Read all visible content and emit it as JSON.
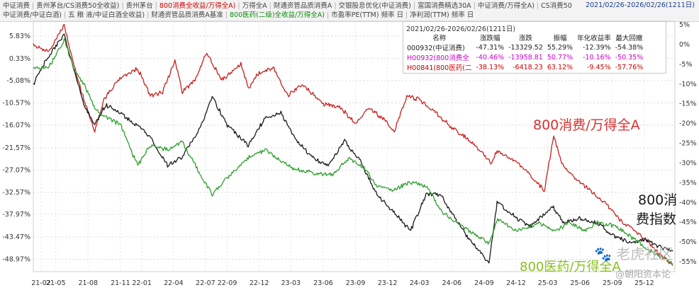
{
  "tabs": {
    "row1": [
      {
        "label": "中证消费",
        "color": "default"
      },
      {
        "label": "贵州茅台/CS消费50全收益)",
        "color": "default"
      },
      {
        "label": "贵州茅台",
        "color": "default"
      },
      {
        "label": "800消费全收益/万得全A)",
        "color": "red"
      },
      {
        "label": "万得全A",
        "color": "default"
      },
      {
        "label": "财通资管品质消费A",
        "color": "default"
      },
      {
        "label": "交银股息优化(中证消费)",
        "color": "default"
      },
      {
        "label": "富国消费精选30A",
        "color": "default"
      },
      {
        "label": "中证消费/万得全A)",
        "color": "default"
      },
      {
        "label": "CS消费50",
        "color": "default"
      }
    ],
    "row2": [
      {
        "label": "中证消费/中证白酒)",
        "color": "default"
      },
      {
        "label": "五 粮 液/中证白酒全收益)",
        "color": "default"
      },
      {
        "label": "财通资管品质消费A基准",
        "color": "default"
      },
      {
        "label": "800医药(二级)全收益/万得全A)",
        "color": "green"
      },
      {
        "label": "市盈率PE(TTM) 频率 日",
        "color": "default"
      },
      {
        "label": "净利润(TTM) 频率 日",
        "color": "default"
      }
    ]
  },
  "date_range": "2021/02/26-2026/02/26(1211日)",
  "stats_table": {
    "title": "2021/02/26-2026/02/26(1211日)",
    "columns": [
      "名称",
      "涨跌幅",
      "涨跌",
      "振幅",
      "年化收益率",
      "最大回撤"
    ],
    "rows": [
      {
        "name": "000932(中证消费)",
        "change_pct": "-47.31%",
        "change": "-13329.52",
        "amplitude": "55.29%",
        "annualized": "-12.39%",
        "max_drawdown": "-54.38%",
        "color": "#222222"
      },
      {
        "name": "H00932(800消费全",
        "change_pct": "-40.46%",
        "change": "-13958.81",
        "amplitude": "50.77%",
        "annualized": "-10.16%",
        "max_drawdown": "-50.35%",
        "color": "#cc00cc"
      },
      {
        "name": "H00841(800医药(二",
        "change_pct": "-38.13%",
        "change": "-6418.23",
        "amplitude": "63.12%",
        "annualized": "-9.45%",
        "max_drawdown": "-57.76%",
        "color": "#cc0000"
      }
    ]
  },
  "annotations": {
    "red_label": "800消费/万得全A",
    "black_label_1": "800消",
    "black_label_2": "费指数",
    "green_label": "800医药/万得全A"
  },
  "watermarks": {
    "wm1": "老虎社区",
    "wm2": "@朝阳资本论"
  },
  "colors": {
    "red": "#c8201e",
    "black": "#1a1a1a",
    "green": "#2e9e2e",
    "annot_red": "#d83030",
    "annot_green": "#88c020",
    "axis_text": "#333333"
  },
  "chart_data": {
    "type": "line",
    "x_ticks": [
      "21-02",
      "21-05",
      "21-08",
      "21-11",
      "22-01",
      "22-04",
      "22-07",
      "22-09",
      "22-12",
      "23-03",
      "23-06",
      "23-09",
      "23-12",
      "24-03",
      "24-06",
      "24-09",
      "24-12",
      "25-03",
      "25-06",
      "25-09",
      "25-12"
    ],
    "left_axis_ticks": [
      "5.83%",
      "0.33%",
      "-5.08%",
      "-10.57%",
      "-16.07%",
      "-21.57%",
      "-27.07%",
      "-32.57%",
      "-37.97%",
      "-43.47%",
      "-48.97%"
    ],
    "left_ylim": [
      -52.0,
      9.5
    ],
    "right_axis_ticks": [
      "5%",
      "0%",
      "-5%",
      "-10%",
      "-15%",
      "-20%",
      "-25%",
      "-30%",
      "-35%",
      "-40%",
      "-45%",
      "-50%",
      "-55%"
    ],
    "right_ylim": [
      -57.5,
      5.9
    ],
    "x_range": [
      "2021-02-26",
      "2026-02-26"
    ],
    "series": [
      {
        "color": "red",
        "axis": "right",
        "points": [
          [
            "2021-02-26",
            0
          ],
          [
            "2021-04-10",
            -2
          ],
          [
            "2021-05-25",
            5
          ],
          [
            "2021-06-20",
            -5
          ],
          [
            "2021-07-20",
            -14
          ],
          [
            "2021-08-20",
            -22
          ],
          [
            "2021-09-15",
            -14
          ],
          [
            "2021-10-25",
            -9
          ],
          [
            "2021-12-20",
            -6
          ],
          [
            "2022-01-25",
            -13
          ],
          [
            "2022-03-01",
            -12
          ],
          [
            "2022-04-05",
            -4
          ],
          [
            "2022-04-26",
            -12
          ],
          [
            "2022-06-01",
            -9
          ],
          [
            "2022-07-05",
            -2
          ],
          [
            "2022-08-15",
            -9
          ],
          [
            "2022-10-10",
            -5
          ],
          [
            "2022-10-31",
            -11
          ],
          [
            "2022-12-01",
            -7
          ],
          [
            "2023-01-10",
            -6
          ],
          [
            "2023-02-20",
            -13
          ],
          [
            "2023-04-01",
            -10
          ],
          [
            "2023-06-01",
            -15
          ],
          [
            "2023-07-20",
            -16
          ],
          [
            "2023-09-01",
            -20
          ],
          [
            "2023-10-10",
            -16
          ],
          [
            "2023-11-20",
            -19
          ],
          [
            "2023-12-20",
            -22
          ],
          [
            "2024-01-25",
            -13
          ],
          [
            "2024-03-01",
            -14
          ],
          [
            "2024-04-15",
            -17
          ],
          [
            "2024-06-01",
            -21
          ],
          [
            "2024-08-01",
            -25
          ],
          [
            "2024-09-20",
            -30
          ],
          [
            "2024-10-08",
            -27
          ],
          [
            "2024-11-20",
            -29
          ],
          [
            "2024-12-31",
            -32
          ],
          [
            "2025-01-20",
            -34
          ],
          [
            "2025-02-20",
            -37
          ],
          [
            "2025-03-18",
            -23
          ],
          [
            "2025-04-10",
            -30
          ],
          [
            "2025-05-20",
            -34
          ],
          [
            "2025-06-30",
            -37
          ],
          [
            "2025-08-20",
            -41
          ],
          [
            "2025-09-30",
            -45
          ],
          [
            "2025-11-01",
            -47
          ],
          [
            "2025-12-01",
            -49
          ],
          [
            "2026-01-01",
            -52
          ],
          [
            "2026-02-20",
            -56
          ]
        ]
      },
      {
        "color": "black",
        "axis": "left",
        "points": [
          [
            "2021-02-26",
            -6
          ],
          [
            "2021-04-10",
            1
          ],
          [
            "2021-05-25",
            6
          ],
          [
            "2021-06-20",
            -2
          ],
          [
            "2021-07-20",
            -11
          ],
          [
            "2021-08-20",
            -16
          ],
          [
            "2021-09-20",
            -11
          ],
          [
            "2021-11-01",
            -13
          ],
          [
            "2021-12-15",
            -16
          ],
          [
            "2022-01-25",
            -19
          ],
          [
            "2022-03-15",
            -26
          ],
          [
            "2022-04-25",
            -24
          ],
          [
            "2022-06-20",
            -16
          ],
          [
            "2022-07-20",
            -9
          ],
          [
            "2022-09-01",
            -16
          ],
          [
            "2022-10-31",
            -21
          ],
          [
            "2022-12-20",
            -14
          ],
          [
            "2023-02-01",
            -13
          ],
          [
            "2023-03-20",
            -20
          ],
          [
            "2023-05-01",
            -24
          ],
          [
            "2023-06-15",
            -26
          ],
          [
            "2023-08-01",
            -20
          ],
          [
            "2023-09-15",
            -25
          ],
          [
            "2023-11-01",
            -33
          ],
          [
            "2023-12-25",
            -38
          ],
          [
            "2024-02-05",
            -42
          ],
          [
            "2024-03-20",
            -33
          ],
          [
            "2024-05-01",
            -33
          ],
          [
            "2024-06-10",
            -39
          ],
          [
            "2024-07-20",
            -44
          ],
          [
            "2024-09-15",
            -50
          ],
          [
            "2024-10-08",
            -35
          ],
          [
            "2024-11-20",
            -38
          ],
          [
            "2025-01-10",
            -41
          ],
          [
            "2025-03-15",
            -36
          ],
          [
            "2025-04-15",
            -40
          ],
          [
            "2025-06-01",
            -39
          ],
          [
            "2025-07-20",
            -40
          ],
          [
            "2025-09-01",
            -43
          ],
          [
            "2025-10-20",
            -45
          ],
          [
            "2025-12-01",
            -44
          ],
          [
            "2026-01-15",
            -46
          ],
          [
            "2026-02-20",
            -47
          ]
        ]
      },
      {
        "color": "green",
        "axis": "left",
        "points": [
          [
            "2021-02-26",
            -2
          ],
          [
            "2021-04-10",
            -2
          ],
          [
            "2021-05-25",
            5
          ],
          [
            "2021-06-20",
            -2
          ],
          [
            "2021-07-20",
            -6
          ],
          [
            "2021-08-20",
            -12
          ],
          [
            "2021-09-20",
            -14
          ],
          [
            "2021-11-01",
            -16
          ],
          [
            "2021-12-20",
            -26
          ],
          [
            "2022-01-25",
            -21
          ],
          [
            "2022-03-15",
            -22
          ],
          [
            "2022-04-25",
            -20
          ],
          [
            "2022-06-15",
            -28
          ],
          [
            "2022-07-20",
            -33
          ],
          [
            "2022-09-01",
            -29
          ],
          [
            "2022-10-31",
            -24
          ],
          [
            "2022-12-20",
            -22
          ],
          [
            "2023-02-01",
            -25
          ],
          [
            "2023-03-20",
            -27
          ],
          [
            "2023-05-15",
            -28
          ],
          [
            "2023-07-01",
            -28
          ],
          [
            "2023-08-15",
            -24
          ],
          [
            "2023-09-30",
            -27
          ],
          [
            "2023-11-01",
            -31
          ],
          [
            "2023-12-20",
            -32
          ],
          [
            "2024-02-05",
            -30
          ],
          [
            "2024-03-20",
            -31
          ],
          [
            "2024-05-01",
            -37
          ],
          [
            "2024-06-15",
            -40
          ],
          [
            "2024-07-20",
            -42
          ],
          [
            "2024-09-15",
            -45
          ],
          [
            "2024-10-10",
            -39
          ],
          [
            "2024-12-01",
            -42
          ],
          [
            "2025-02-01",
            -40
          ],
          [
            "2025-03-20",
            -42
          ],
          [
            "2025-05-01",
            -40
          ],
          [
            "2025-06-15",
            -42
          ],
          [
            "2025-07-20",
            -40
          ],
          [
            "2025-09-15",
            -41
          ],
          [
            "2025-11-01",
            -44
          ],
          [
            "2025-12-20",
            -47
          ],
          [
            "2026-02-20",
            -50
          ]
        ]
      }
    ]
  }
}
